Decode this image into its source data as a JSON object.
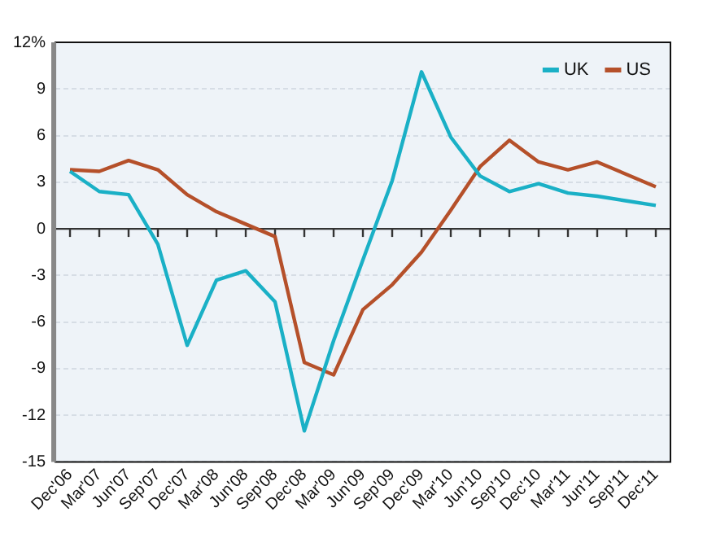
{
  "chart_data": {
    "type": "line",
    "categories": [
      "Dec'06",
      "Mar'07",
      "Jun'07",
      "Sep'07",
      "Dec'07",
      "Mar'08",
      "Jun'08",
      "Sep'08",
      "Dec'08",
      "Mar'09",
      "Jun'09",
      "Sep'09",
      "Dec'09",
      "Mar'10",
      "Jun'10",
      "Sep'10",
      "Dec'10",
      "Mar'11",
      "Jun'11",
      "Sep'11",
      "Dec'11"
    ],
    "series": [
      {
        "name": "UK",
        "color": "#1ab0c6",
        "values": [
          3.7,
          2.4,
          2.2,
          -1.0,
          -7.5,
          -3.3,
          -2.7,
          -4.7,
          -13.0,
          -7.2,
          -2.0,
          3.1,
          10.1,
          5.9,
          3.4,
          2.4,
          2.9,
          2.3,
          2.1,
          1.8,
          1.5
        ]
      },
      {
        "name": "US",
        "color": "#b5502a",
        "values": [
          3.8,
          3.7,
          4.4,
          3.8,
          2.2,
          1.1,
          0.3,
          -0.5,
          -8.6,
          -9.4,
          -5.2,
          -3.6,
          -1.5,
          1.2,
          4.0,
          5.7,
          4.3,
          3.8,
          4.3,
          3.5,
          2.7
        ]
      }
    ],
    "ylim": [
      -15,
      12
    ],
    "yticks": [
      -15,
      -12,
      -9,
      -6,
      -3,
      0,
      3,
      6,
      9,
      {
        "value": 12,
        "label": "12%"
      }
    ],
    "grid": "y",
    "legend": "top right",
    "marker": "none",
    "line_style": "solid"
  }
}
